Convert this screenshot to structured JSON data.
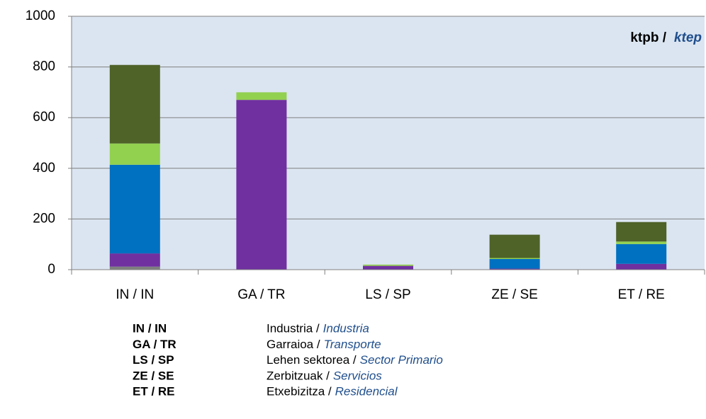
{
  "chart_data": {
    "type": "bar",
    "stacked": true,
    "unit": "ktpb /",
    "unit_es": "ktep",
    "categories": [
      "IN / IN",
      "GA / TR",
      "LS / SP",
      "ZE / SE",
      "ET / RE"
    ],
    "series": [
      {
        "color": "#7f7f7f",
        "values": [
          12,
          0,
          0,
          0,
          0
        ]
      },
      {
        "color": "#7030a0",
        "values": [
          52,
          670,
          15,
          4,
          23
        ]
      },
      {
        "color": "#0070c0",
        "values": [
          350,
          0,
          0,
          38,
          78
        ]
      },
      {
        "color": "#92d050",
        "values": [
          84,
          30,
          5,
          4,
          10
        ]
      },
      {
        "color": "#4f6228",
        "values": [
          310,
          0,
          0,
          92,
          77
        ]
      }
    ],
    "ylim": [
      0,
      1000
    ],
    "yticks": [
      0,
      200,
      400,
      600,
      800,
      1000
    ],
    "grid": true,
    "glossary": [
      {
        "eu": "Industria /",
        "es": "Industria"
      },
      {
        "eu": "Garraioa /",
        "es": "Transporte"
      },
      {
        "eu": "Lehen sektorea /",
        "es": "Sector Primario"
      },
      {
        "eu": "Zerbitzuak /",
        "es": "Servicios"
      },
      {
        "eu": "Etxebizitza /",
        "es": "Residencial"
      }
    ]
  }
}
